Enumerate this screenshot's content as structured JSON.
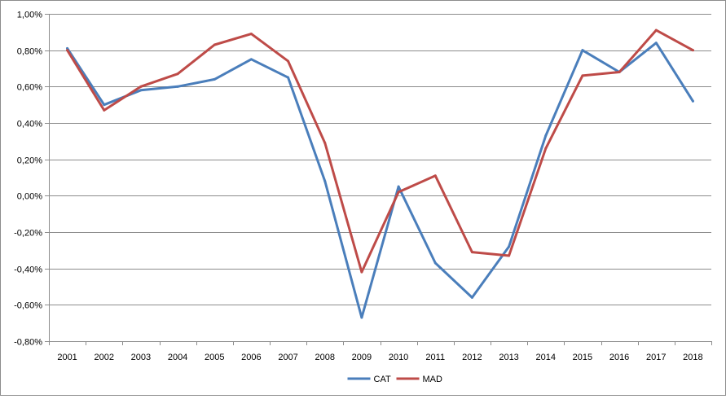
{
  "chart_data": {
    "type": "line",
    "categories": [
      "2001",
      "2002",
      "2003",
      "2004",
      "2005",
      "2006",
      "2007",
      "2008",
      "2009",
      "2010",
      "2011",
      "2012",
      "2013",
      "2014",
      "2015",
      "2016",
      "2017",
      "2018"
    ],
    "series": [
      {
        "name": "CAT",
        "color": "#4a7ebb",
        "values": [
          0.81,
          0.5,
          0.58,
          0.6,
          0.64,
          0.75,
          0.65,
          0.08,
          -0.67,
          0.05,
          -0.37,
          -0.56,
          -0.28,
          0.33,
          0.8,
          0.68,
          0.84,
          0.52
        ]
      },
      {
        "name": "MAD",
        "color": "#be4b48",
        "values": [
          0.8,
          0.47,
          0.6,
          0.67,
          0.83,
          0.89,
          0.74,
          0.29,
          -0.42,
          0.02,
          0.11,
          -0.31,
          -0.33,
          0.26,
          0.66,
          0.68,
          0.91,
          0.8
        ]
      }
    ],
    "ylim": [
      -0.8,
      1.0
    ],
    "y_ticks": [
      1.0,
      0.8,
      0.6,
      0.4,
      0.2,
      0.0,
      -0.2,
      -0.4,
      -0.6,
      -0.8
    ],
    "y_tick_labels": [
      "1,00%",
      "0,80%",
      "0,60%",
      "0,40%",
      "0,20%",
      "0,00%",
      "-0,20%",
      "-0,40%",
      "-0,60%",
      "-0,80%"
    ],
    "grid": true,
    "legend_position": "bottom"
  }
}
